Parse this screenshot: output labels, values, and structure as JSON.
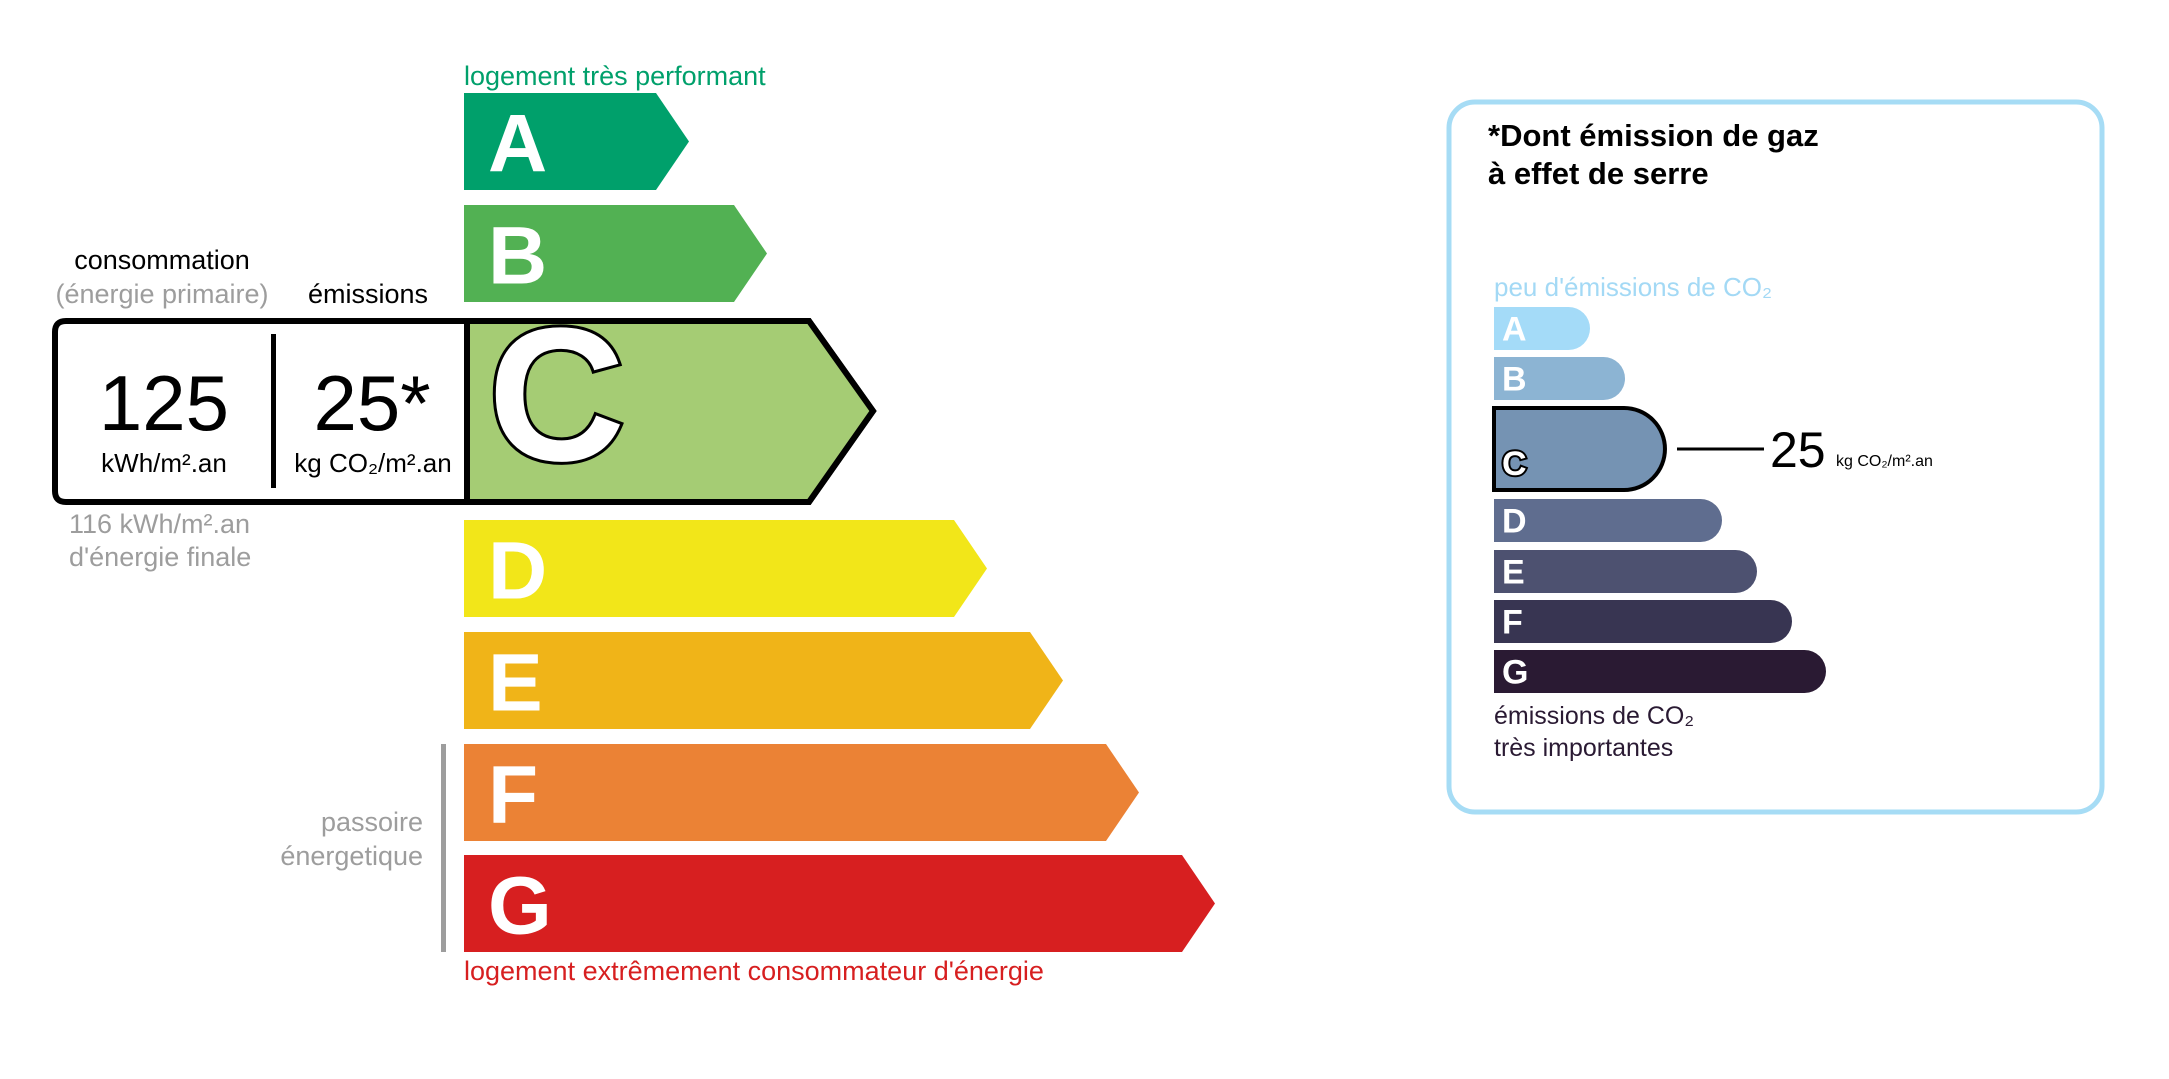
{
  "energy": {
    "top_label": "logement très performant",
    "bottom_label": "logement extrêmement consommateur d'énergie",
    "passoire_line1": "passoire",
    "passoire_line2": "énergetique",
    "current_class": "C",
    "classes": [
      {
        "letter": "A",
        "color": "#00a06b"
      },
      {
        "letter": "B",
        "color": "#52b153"
      },
      {
        "letter": "C",
        "color": "#a5cc74"
      },
      {
        "letter": "D",
        "color": "#f2e619"
      },
      {
        "letter": "E",
        "color": "#f0b418"
      },
      {
        "letter": "F",
        "color": "#eb8235"
      },
      {
        "letter": "G",
        "color": "#d71f20"
      }
    ],
    "consumption_label": "consommation",
    "consumption_sublabel": "(énergie primaire)",
    "emissions_label": "émissions",
    "consumption_value": "125",
    "consumption_unit": "kWh/m².an",
    "emissions_value": "25*",
    "emissions_unit": "kg CO₂/m².an",
    "final_energy_line1": "116 kWh/m².an",
    "final_energy_line2": "d'énergie finale",
    "top_color": "#00a06b",
    "bottom_color": "#d71f20"
  },
  "ghg": {
    "title_line1": "*Dont émission de gaz",
    "title_line2": "à effet de serre",
    "top_label": "peu d'émissions de CO₂",
    "bottom_line1": "émissions de CO₂",
    "bottom_line2": "très importantes",
    "current_class": "C",
    "value": "25",
    "unit": "kg CO₂/m².an",
    "border_color": "#a6dcf5",
    "classes": [
      {
        "letter": "A",
        "color": "#a4dbf8"
      },
      {
        "letter": "B",
        "color": "#8cb4d3"
      },
      {
        "letter": "C",
        "color": "#7593b3"
      },
      {
        "letter": "D",
        "color": "#5f6d8f"
      },
      {
        "letter": "E",
        "color": "#4d5170"
      },
      {
        "letter": "F",
        "color": "#383552"
      },
      {
        "letter": "G",
        "color": "#2a1a33"
      }
    ]
  }
}
